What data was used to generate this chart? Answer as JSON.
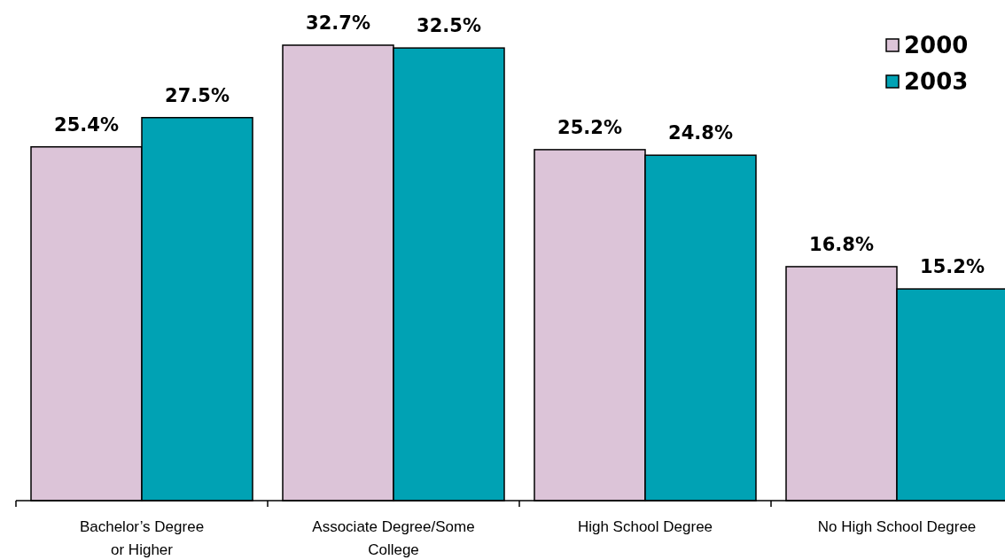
{
  "chart_data": {
    "type": "bar",
    "categories": [
      "Bachelor’s Degree\nor Higher",
      "Associate Degree/Some\nCollege",
      "High School Degree",
      "No High School Degree"
    ],
    "series": [
      {
        "name": "2000",
        "color": "#dcc4d8",
        "values": [
          25.4,
          32.7,
          25.2,
          16.8
        ],
        "value_labels": [
          "25.4%",
          "32.7%",
          "25.2%",
          "16.8%"
        ]
      },
      {
        "name": "2003",
        "color": "#00a2b4",
        "values": [
          27.5,
          32.5,
          24.8,
          15.2
        ],
        "value_labels": [
          "27.5%",
          "32.5%",
          "24.8%",
          "15.2%"
        ]
      }
    ],
    "tick_labels": "x",
    "legend": "top right"
  }
}
